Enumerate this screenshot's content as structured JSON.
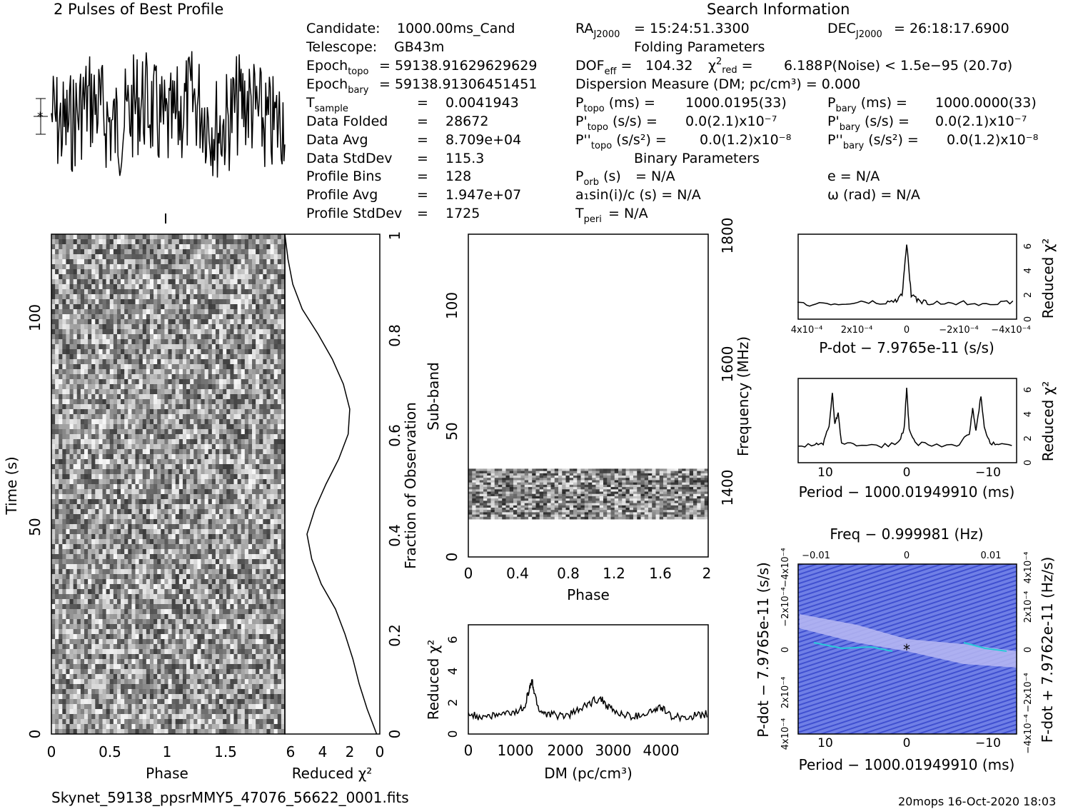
{
  "titles": {
    "profile": "2 Pulses of Best Profile",
    "search": "Search Information",
    "folding": "Folding Parameters",
    "binary": "Binary Parameters"
  },
  "info_left": [
    {
      "label": "Candidate:",
      "value": "1000.00ms_Cand"
    },
    {
      "label": "Telescope:",
      "value": "GB43m"
    },
    {
      "label": "Epoch",
      "sub": "topo",
      "value": "= 59138.9162962962​9"
    },
    {
      "label": "Epoch",
      "sub": "bary",
      "value": "= 59138.91306451451"
    },
    {
      "label": "T",
      "sub": "sample",
      "value": "0.0041943"
    },
    {
      "label": "Data Folded",
      "value": "28672"
    },
    {
      "label": "Data Avg",
      "value": "8.709e+04"
    },
    {
      "label": "Data StdDev",
      "value": "115.3"
    },
    {
      "label": "Profile Bins",
      "value": "128"
    },
    {
      "label": "Profile Avg",
      "value": "1.947e+07"
    },
    {
      "label": "Profile StdDev",
      "value": "1725"
    }
  ],
  "info_mid": {
    "ra": "= 15:24:51.3300",
    "dof": "104.32",
    "chi2red": "6.188",
    "dm": "Dispersion Measure (DM; pc/cm³) = 0.000",
    "ptopo": "1000.0195(33)",
    "pdtopo": "0.0(2.1)x10⁻⁷",
    "pddtopo": "0.0(1.2)x10⁻⁸",
    "porb": "= N/A",
    "a1": "a₁sin(i)/c (s) = N/A",
    "tperi": "= N/A"
  },
  "info_right": {
    "dec": "= 26:18:17.6900",
    "pnoise": "P(Noise) < 1.5e−95  (20.7σ)",
    "pbary": "1000.0000(33)",
    "pdbary": "0.0(2.1)x10⁻⁷",
    "pddbary": "0.0(1.2)x10⁻⁸",
    "e": "e = N/A",
    "omega": "ω (rad) = N/A"
  },
  "axes": {
    "phase": "Phase",
    "time": "Time (s)",
    "reduced_chi2": "Reduced χ²",
    "fraction": "Fraction of Observation",
    "subband": "Sub-band",
    "frequency": "Frequency (MHz)",
    "dm": "DM (pc/cm³)",
    "pdot": "P-dot − 7.9765e-11 (s/s)",
    "period": "Period − 1000.01949910 (ms)",
    "freq": "Freq − 0.999981 (Hz)",
    "pdot_side": "P-dot − 7.9765e-11 (s/s)",
    "fdot_side": "F-dot + 7.9762e-11 (Hz/s)"
  },
  "footer": {
    "filename": "Skynet_59138_ppsrMMY5_47076_56622_0001.fits",
    "stamp": "20mops 16-Oct-2020 18:03"
  },
  "chart_data": [
    {
      "type": "line",
      "title": "2 Pulses of Best Profile",
      "xlabel": "",
      "ylabel": "",
      "note": "noisy folded profile, no clear pulse"
    },
    {
      "type": "heatmap",
      "xlabel": "Phase",
      "ylabel": "Time (s)",
      "xlim": [
        0,
        2
      ],
      "ylim": [
        0,
        120
      ],
      "x_ticks": [
        "0",
        "0.5",
        "1",
        "1.5"
      ],
      "y_ticks": [
        "0",
        "50",
        "100"
      ]
    },
    {
      "type": "line",
      "xlabel": "Reduced χ²",
      "ylabel": "Fraction of Observation",
      "xlim": [
        6,
        0
      ],
      "ylim": [
        0,
        1
      ],
      "x": [
        0.2,
        0.8,
        1.3,
        1.7,
        2.2,
        2.8,
        3.7,
        4.3,
        4.6,
        4.1,
        3.4,
        2.6,
        2.0,
        1.9,
        2.3,
        3.0,
        3.9,
        4.9,
        5.5,
        5.8,
        6.0
      ],
      "y": [
        0.0,
        0.05,
        0.1,
        0.15,
        0.2,
        0.25,
        0.3,
        0.35,
        0.4,
        0.45,
        0.5,
        0.55,
        0.6,
        0.65,
        0.7,
        0.75,
        0.8,
        0.85,
        0.9,
        0.95,
        1.0
      ]
    },
    {
      "type": "heatmap",
      "xlabel": "Phase",
      "ylabel": "Sub-band",
      "xlim": [
        0,
        2
      ],
      "ylim": [
        0,
        128
      ],
      "y2label": "Frequency (MHz)",
      "y2_ticks": [
        "1400",
        "1600",
        "1800"
      ],
      "data_band": [
        15,
        35
      ]
    },
    {
      "type": "line",
      "xlabel": "DM (pc/cm³)",
      "ylabel": "Reduced χ²",
      "xlim": [
        0,
        4900
      ],
      "ylim": [
        0,
        7
      ],
      "x": [
        0,
        200,
        400,
        600,
        800,
        1000,
        1150,
        1250,
        1300,
        1350,
        1450,
        1600,
        1800,
        2000,
        2200,
        2400,
        2550,
        2700,
        2850,
        3000,
        3200,
        3400,
        3600,
        3800,
        3950,
        4100,
        4300,
        4500,
        4700,
        4900
      ],
      "y": [
        1.3,
        1.1,
        1.2,
        1.2,
        1.3,
        1.4,
        1.8,
        2.9,
        3.4,
        2.6,
        1.5,
        1.3,
        1.2,
        1.2,
        1.4,
        1.8,
        2.1,
        2.3,
        1.8,
        1.4,
        1.2,
        1.1,
        1.3,
        1.5,
        1.7,
        1.2,
        1.1,
        1.1,
        1.2,
        1.3
      ]
    },
    {
      "type": "line",
      "xlabel": "P-dot − 7.9765e-11 (s/s)",
      "ylabel": "Reduced χ²",
      "ylim": [
        0,
        7
      ],
      "x_ticks": [
        "4x10⁻⁴",
        "2x10⁻⁴",
        "0",
        "−2x10⁻⁴",
        "−4x10⁻⁴"
      ],
      "x": [
        4.8,
        4,
        3,
        2,
        1,
        0.5,
        0.2,
        0,
        -0.2,
        -0.5,
        -1,
        -2,
        -3,
        -4,
        -4.8
      ],
      "y": [
        1.2,
        1.3,
        1.2,
        1.4,
        1.3,
        1.5,
        2.0,
        6.2,
        2.0,
        1.5,
        1.3,
        1.4,
        1.3,
        1.4,
        1.3
      ]
    },
    {
      "type": "line",
      "xlabel": "Period − 1000.01949910 (ms)",
      "ylabel": "Reduced χ²",
      "ylim": [
        0,
        7
      ],
      "x_ticks": [
        "10",
        "0",
        "−10"
      ],
      "x": [
        13,
        11,
        10,
        9.3,
        8.9,
        8.6,
        8.2,
        7.8,
        6,
        3,
        1,
        0.3,
        0,
        -0.3,
        -1,
        -3,
        -6,
        -7.5,
        -7.9,
        -8.3,
        -8.9,
        -9.3,
        -10,
        -11,
        -13
      ],
      "y": [
        1.4,
        1.5,
        1.6,
        3.0,
        5.8,
        3.2,
        4.2,
        1.6,
        1.5,
        1.4,
        1.6,
        2.8,
        6.2,
        2.8,
        1.6,
        1.5,
        1.4,
        2.4,
        4.5,
        2.6,
        5.6,
        3.0,
        1.6,
        1.5,
        1.4
      ]
    },
    {
      "type": "heatmap",
      "xlabel": "Period − 1000.01949910 (ms)",
      "ylabel": "P-dot − 7.9765e-11 (s/s)",
      "x2label": "Freq − 0.999981 (Hz)",
      "y2label": "F-dot + 7.9762e-11 (Hz/s)",
      "x_ticks": [
        "10",
        "0",
        "−10"
      ],
      "x2_ticks": [
        "−0.01",
        "0",
        "0.01"
      ],
      "y_ticks": [
        "4x10⁻⁴",
        "2x10⁻⁴",
        "0",
        "−2x10⁻⁴",
        "−4x10⁻⁴"
      ],
      "y2_ticks": [
        "−4x10⁻⁴",
        "−2x10⁻⁴",
        "0",
        "2x10⁻⁴",
        "4x10⁻⁴"
      ]
    }
  ]
}
